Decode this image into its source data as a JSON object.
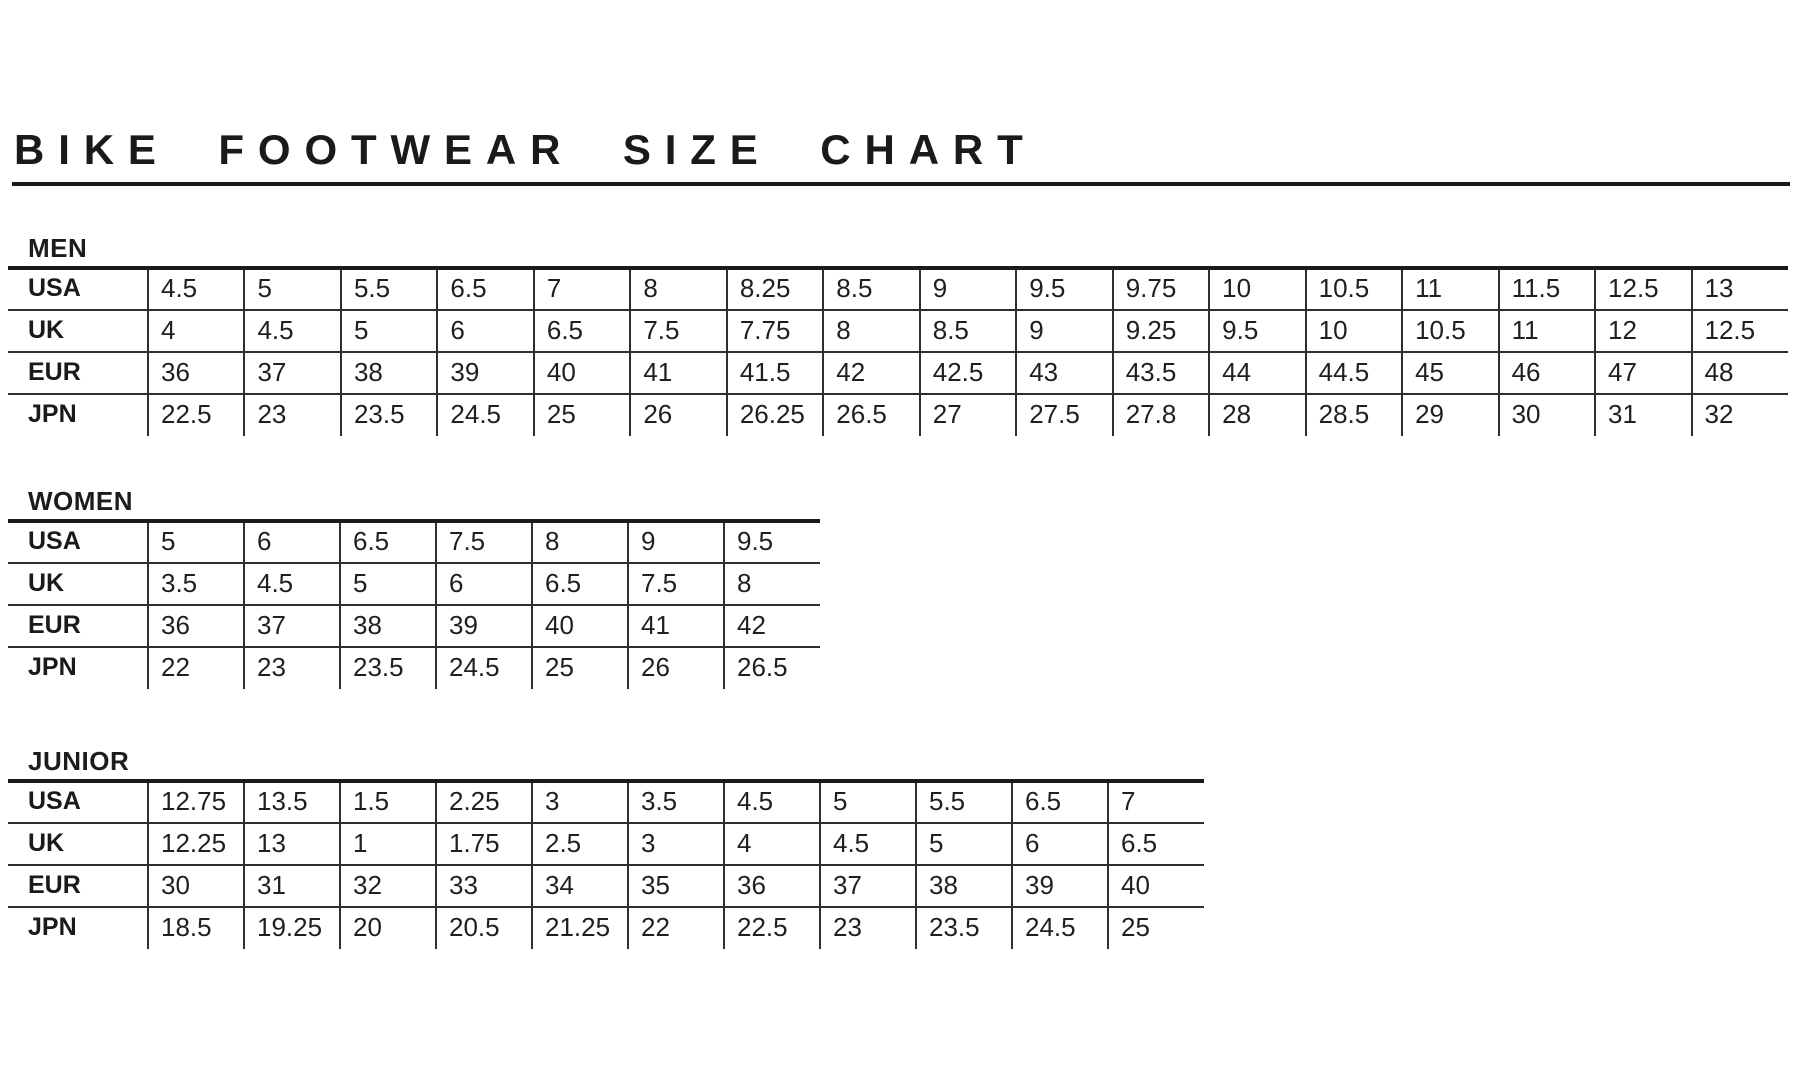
{
  "title": "BIKE FOOTWEAR SIZE CHART",
  "colors": {
    "background": "#ffffff",
    "text": "#1e1e1e",
    "line": "#2e2e2e",
    "heavy_line": "#1a1a1a"
  },
  "sections": [
    {
      "label": "MEN",
      "rows": [
        {
          "label": "USA",
          "values": [
            "4.5",
            "5",
            "5.5",
            "6.5",
            "7",
            "8",
            "8.25",
            "8.5",
            "9",
            "9.5",
            "9.75",
            "10",
            "10.5",
            "11",
            "11.5",
            "12.5",
            "13"
          ]
        },
        {
          "label": "UK",
          "values": [
            "4",
            "4.5",
            "5",
            "6",
            "6.5",
            "7.5",
            "7.75",
            "8",
            "8.5",
            "9",
            "9.25",
            "9.5",
            "10",
            "10.5",
            "11",
            "12",
            "12.5"
          ]
        },
        {
          "label": "EUR",
          "values": [
            "36",
            "37",
            "38",
            "39",
            "40",
            "41",
            "41.5",
            "42",
            "42.5",
            "43",
            "43.5",
            "44",
            "44.5",
            "45",
            "46",
            "47",
            "48"
          ]
        },
        {
          "label": "JPN",
          "values": [
            "22.5",
            "23",
            "23.5",
            "24.5",
            "25",
            "26",
            "26.25",
            "26.5",
            "27",
            "27.5",
            "27.8",
            "28",
            "28.5",
            "29",
            "30",
            "31",
            "32"
          ]
        }
      ]
    },
    {
      "label": "WOMEN",
      "rows": [
        {
          "label": "USA",
          "values": [
            "5",
            "6",
            "6.5",
            "7.5",
            "8",
            "9",
            "9.5"
          ]
        },
        {
          "label": "UK",
          "values": [
            "3.5",
            "4.5",
            "5",
            "6",
            "6.5",
            "7.5",
            "8"
          ]
        },
        {
          "label": "EUR",
          "values": [
            "36",
            "37",
            "38",
            "39",
            "40",
            "41",
            "42"
          ]
        },
        {
          "label": "JPN",
          "values": [
            "22",
            "23",
            "23.5",
            "24.5",
            "25",
            "26",
            "26.5"
          ]
        }
      ]
    },
    {
      "label": "JUNIOR",
      "rows": [
        {
          "label": "USA",
          "values": [
            "12.75",
            "13.5",
            "1.5",
            "2.25",
            "3",
            "3.5",
            "4.5",
            "5",
            "5.5",
            "6.5",
            "7"
          ]
        },
        {
          "label": "UK",
          "values": [
            "12.25",
            "13",
            "1",
            "1.75",
            "2.5",
            "3",
            "4",
            "4.5",
            "5",
            "6",
            "6.5"
          ]
        },
        {
          "label": "EUR",
          "values": [
            "30",
            "31",
            "32",
            "33",
            "34",
            "35",
            "36",
            "37",
            "38",
            "39",
            "40"
          ]
        },
        {
          "label": "JPN",
          "values": [
            "18.5",
            "19.25",
            "20",
            "20.5",
            "21.25",
            "22",
            "22.5",
            "23",
            "23.5",
            "24.5",
            "25"
          ]
        }
      ]
    }
  ]
}
